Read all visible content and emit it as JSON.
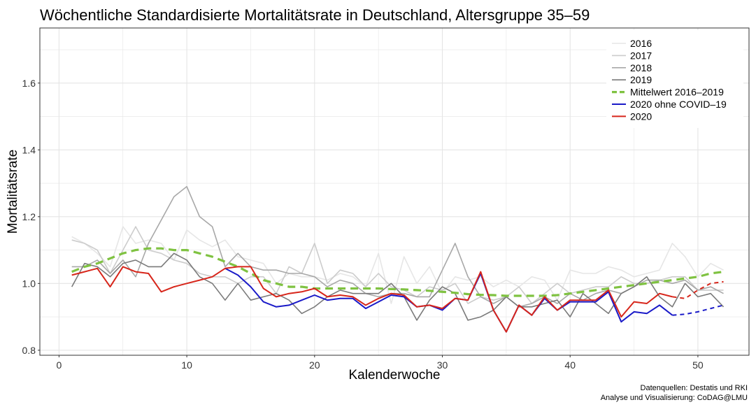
{
  "chart_data": {
    "type": "line",
    "title": "Wöchentliche Standardisierte Mortalitätsrate in Deutschland, Altersgruppe 35–59",
    "xlabel": "Kalenderwoche",
    "ylabel": "Mortalitätsrate",
    "xlim": [
      -1.5,
      54
    ],
    "ylim": [
      0.785,
      1.765
    ],
    "xticks": [
      0,
      10,
      20,
      30,
      40,
      50
    ],
    "yticks": [
      0.8,
      1.0,
      1.2,
      1.4,
      1.6
    ],
    "grid": true,
    "legend_position": "top-right",
    "caption": [
      "Datenquellen: Destatis und RKI",
      "Analyse und Visualisierung: CoDAG@LMU"
    ],
    "colors": {
      "s2016": "#e6e6e6",
      "s2017": "#cccccc",
      "s2018": "#a8a8a8",
      "s2019": "#7a7a7a",
      "mean": "#7fc241",
      "no_covid": "#1a1ac8",
      "y2020": "#d7261b",
      "grid": "#e5e5e5",
      "panel_border": "#333333"
    },
    "series": [
      {
        "id": "s2016",
        "name": "2016",
        "style": "solid",
        "width": 1.6,
        "x": [
          1,
          2,
          3,
          4,
          5,
          6,
          7,
          8,
          9,
          10,
          11,
          12,
          13,
          14,
          15,
          16,
          17,
          18,
          19,
          20,
          21,
          22,
          23,
          24,
          25,
          26,
          27,
          28,
          29,
          30,
          31,
          32,
          33,
          34,
          35,
          36,
          37,
          38,
          39,
          40,
          41,
          42,
          43,
          44,
          45,
          46,
          47,
          48,
          49,
          50,
          51,
          52
        ],
        "y": [
          1.14,
          1.12,
          1.09,
          1.05,
          1.17,
          1.12,
          1.13,
          1.12,
          1.07,
          1.16,
          1.13,
          1.11,
          1.13,
          1.08,
          1.07,
          1.06,
          1.0,
          1.03,
          1.02,
          1.02,
          1.01,
          1.03,
          1.02,
          0.99,
          1.09,
          0.94,
          1.08,
          1.0,
          1.05,
          0.97,
          1.02,
          1.01,
          1.02,
          0.99,
          1.01,
          0.99,
          1.02,
          1.01,
          0.95,
          1.04,
          1.03,
          1.03,
          1.05,
          1.04,
          1.02,
          1.03,
          1.04,
          1.12,
          1.08,
          1.02,
          1.06,
          1.04
        ]
      },
      {
        "id": "s2017",
        "name": "2017",
        "style": "solid",
        "width": 1.6,
        "x": [
          1,
          2,
          3,
          4,
          5,
          6,
          7,
          8,
          9,
          10,
          11,
          12,
          13,
          14,
          15,
          16,
          17,
          18,
          19,
          20,
          21,
          22,
          23,
          24,
          25,
          26,
          27,
          28,
          29,
          30,
          31,
          32,
          33,
          34,
          35,
          36,
          37,
          38,
          39,
          40,
          41,
          42,
          43,
          44,
          45,
          46,
          47,
          48,
          49,
          50,
          51,
          52
        ],
        "y": [
          1.13,
          1.12,
          1.1,
          1.03,
          1.1,
          1.17,
          1.1,
          1.09,
          1.07,
          1.06,
          1.03,
          1.02,
          1.02,
          1.0,
          1.02,
          1.02,
          0.97,
          1.05,
          1.03,
          1.12,
          1.0,
          1.04,
          1.03,
          0.99,
          1.03,
          0.99,
          0.98,
          0.96,
          0.99,
          0.98,
          1.0,
          0.94,
          0.96,
          0.95,
          0.96,
          0.99,
          0.94,
          0.97,
          1.0,
          0.97,
          0.98,
          0.99,
          0.99,
          1.02,
          1.0,
          1.0,
          1.01,
          1.02,
          1.02,
          0.98,
          0.98,
          0.98
        ]
      },
      {
        "id": "s2018",
        "name": "2018",
        "style": "solid",
        "width": 1.6,
        "x": [
          1,
          2,
          3,
          4,
          5,
          6,
          7,
          8,
          9,
          10,
          11,
          12,
          13,
          14,
          15,
          16,
          17,
          18,
          19,
          20,
          21,
          22,
          23,
          24,
          25,
          26,
          27,
          28,
          29,
          30,
          31,
          32,
          33,
          34,
          35,
          36,
          37,
          38,
          39,
          40,
          41,
          42,
          43,
          44,
          45,
          46,
          47,
          48,
          49,
          50,
          51,
          52
        ],
        "y": [
          1.05,
          1.05,
          1.07,
          1.03,
          1.07,
          1.02,
          1.12,
          1.19,
          1.26,
          1.29,
          1.2,
          1.17,
          1.05,
          1.09,
          1.05,
          1.04,
          1.04,
          1.03,
          1.03,
          1.02,
          0.99,
          1.01,
          1.0,
          0.97,
          0.96,
          0.97,
          0.97,
          0.96,
          0.96,
          1.04,
          1.12,
          1.02,
          0.96,
          0.94,
          0.96,
          0.93,
          0.94,
          0.96,
          0.94,
          0.97,
          0.95,
          0.97,
          0.98,
          0.97,
          0.99,
          1.01,
          1.01,
          1.0,
          1.01,
          0.98,
          0.99,
          0.97
        ]
      },
      {
        "id": "s2019",
        "name": "2019",
        "style": "solid",
        "width": 1.6,
        "x": [
          1,
          2,
          3,
          4,
          5,
          6,
          7,
          8,
          9,
          10,
          11,
          12,
          13,
          14,
          15,
          16,
          17,
          18,
          19,
          20,
          21,
          22,
          23,
          24,
          25,
          26,
          27,
          28,
          29,
          30,
          31,
          32,
          33,
          34,
          35,
          36,
          37,
          38,
          39,
          40,
          41,
          42,
          43,
          44,
          45,
          46,
          47,
          48,
          49,
          50,
          51,
          52
        ],
        "y": [
          0.99,
          1.06,
          1.05,
          1.02,
          1.06,
          1.07,
          1.05,
          1.05,
          1.09,
          1.07,
          1.02,
          1.0,
          0.95,
          1.0,
          0.95,
          0.96,
          0.97,
          0.95,
          0.91,
          0.93,
          0.96,
          0.98,
          0.97,
          0.97,
          0.97,
          1.0,
          0.96,
          0.89,
          0.95,
          0.99,
          0.97,
          0.89,
          0.9,
          0.92,
          0.96,
          0.93,
          0.93,
          0.94,
          0.95,
          0.9,
          0.97,
          0.94,
          0.91,
          0.97,
          0.99,
          1.02,
          0.96,
          0.93,
          1.0,
          0.96,
          0.97,
          0.93
        ]
      },
      {
        "id": "mean",
        "name": "Mittelwert 2016–2019",
        "style": "dashed",
        "width": 3.2,
        "x": [
          1,
          2,
          3,
          4,
          5,
          6,
          7,
          8,
          9,
          10,
          11,
          12,
          13,
          14,
          15,
          16,
          17,
          18,
          19,
          20,
          21,
          22,
          23,
          24,
          25,
          26,
          27,
          28,
          29,
          30,
          31,
          32,
          33,
          34,
          35,
          36,
          37,
          38,
          39,
          40,
          41,
          42,
          43,
          44,
          45,
          46,
          47,
          48,
          49,
          50,
          51,
          52
        ],
        "y": [
          1.035,
          1.05,
          1.06,
          1.075,
          1.09,
          1.1,
          1.105,
          1.105,
          1.1,
          1.1,
          1.09,
          1.08,
          1.065,
          1.05,
          1.03,
          1.01,
          1.0,
          0.99,
          0.99,
          0.985,
          0.985,
          0.985,
          0.985,
          0.985,
          0.985,
          0.983,
          0.982,
          0.98,
          0.978,
          0.975,
          0.972,
          0.968,
          0.966,
          0.965,
          0.963,
          0.963,
          0.963,
          0.963,
          0.965,
          0.97,
          0.975,
          0.98,
          0.985,
          0.99,
          0.995,
          1.0,
          1.005,
          1.01,
          1.015,
          1.02,
          1.03,
          1.035
        ]
      },
      {
        "id": "no_covid",
        "name": "2020 ohne COVID–19",
        "style": "solid",
        "width": 2.0,
        "x": [
          13,
          14,
          15,
          16,
          17,
          18,
          19,
          20,
          21,
          22,
          23,
          24,
          25,
          26,
          27,
          28,
          29,
          30,
          31,
          32,
          33,
          34,
          35,
          36,
          37,
          38,
          39,
          40,
          41,
          42,
          43,
          44,
          45,
          46,
          47,
          48
        ],
        "y": [
          1.045,
          1.025,
          0.99,
          0.945,
          0.93,
          0.935,
          0.95,
          0.965,
          0.95,
          0.955,
          0.955,
          0.925,
          0.945,
          0.965,
          0.96,
          0.93,
          0.935,
          0.92,
          0.955,
          0.95,
          1.03,
          0.92,
          0.855,
          0.935,
          0.905,
          0.955,
          0.92,
          0.945,
          0.945,
          0.945,
          0.975,
          0.885,
          0.915,
          0.91,
          0.935,
          0.905
        ]
      },
      {
        "id": "no_covid_proj",
        "name": "",
        "style": "dashed",
        "width": 2.0,
        "x": [
          48,
          49,
          50,
          51,
          52
        ],
        "y": [
          0.905,
          0.908,
          0.915,
          0.925,
          0.935
        ]
      },
      {
        "id": "y2020",
        "name": "2020",
        "style": "solid",
        "width": 2.0,
        "x": [
          1,
          2,
          3,
          4,
          5,
          6,
          7,
          8,
          9,
          10,
          11,
          12,
          13,
          14,
          15,
          16,
          17,
          18,
          19,
          20,
          21,
          22,
          23,
          24,
          25,
          26,
          27,
          28,
          29,
          30,
          31,
          32,
          33,
          34,
          35,
          36,
          37,
          38,
          39,
          40,
          41,
          42,
          43,
          44,
          45,
          46,
          47,
          48
        ],
        "y": [
          1.025,
          1.035,
          1.045,
          0.99,
          1.05,
          1.035,
          1.03,
          0.975,
          0.99,
          1.0,
          1.01,
          1.02,
          1.045,
          1.05,
          1.05,
          0.985,
          0.96,
          0.97,
          0.975,
          0.985,
          0.96,
          0.965,
          0.96,
          0.935,
          0.955,
          0.97,
          0.965,
          0.93,
          0.935,
          0.925,
          0.955,
          0.95,
          1.035,
          0.92,
          0.855,
          0.935,
          0.905,
          0.96,
          0.92,
          0.95,
          0.95,
          0.95,
          0.98,
          0.9,
          0.945,
          0.94,
          0.97,
          0.96
        ]
      },
      {
        "id": "y2020_proj",
        "name": "",
        "style": "dashed",
        "width": 2.0,
        "x": [
          48,
          49,
          50,
          51,
          52
        ],
        "y": [
          0.96,
          0.955,
          0.98,
          1.0,
          1.005
        ]
      }
    ],
    "legend": [
      {
        "series": "s2016",
        "label": "2016"
      },
      {
        "series": "s2017",
        "label": "2017"
      },
      {
        "series": "s2018",
        "label": "2018"
      },
      {
        "series": "s2019",
        "label": "2019"
      },
      {
        "series": "mean",
        "label": "Mittelwert 2016–2019"
      },
      {
        "series": "no_covid",
        "label": "2020 ohne COVID–19"
      },
      {
        "series": "y2020",
        "label": "2020"
      }
    ]
  }
}
